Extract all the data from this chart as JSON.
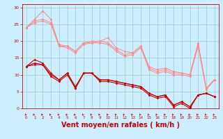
{
  "title": "",
  "xlabel": "Vent moyen/en rafales ( km/h )",
  "bg_color": "#cceeff",
  "grid_color": "#99cccc",
  "line_color_dark": "#cc0000",
  "line_color_light": "#ff8888",
  "xlim": [
    -0.5,
    23.5
  ],
  "ylim": [
    0,
    31
  ],
  "xtick_labels": [
    "0",
    "1",
    "2",
    "3",
    "4",
    "5",
    "6",
    "7",
    "8",
    "9",
    "10",
    "11",
    "12",
    "13",
    "14",
    "15",
    "16",
    "17",
    "18",
    "19",
    "20",
    "21",
    "22",
    "23"
  ],
  "yticks": [
    0,
    5,
    10,
    15,
    20,
    25,
    30
  ],
  "series_light": [
    [
      24.0,
      26.5,
      29.0,
      26.5,
      18.5,
      18.5,
      17.0,
      19.5,
      19.5,
      20.0,
      21.0,
      18.0,
      17.0,
      16.5,
      18.5,
      12.5,
      11.5,
      12.0,
      11.0,
      10.5,
      10.0,
      19.5,
      6.0,
      8.5
    ],
    [
      24.0,
      26.0,
      26.5,
      25.5,
      19.0,
      18.5,
      17.0,
      19.5,
      20.0,
      20.0,
      19.5,
      17.5,
      16.0,
      16.5,
      18.5,
      12.0,
      11.0,
      11.5,
      10.5,
      10.5,
      10.0,
      19.0,
      6.0,
      8.5
    ],
    [
      24.0,
      25.5,
      26.0,
      25.0,
      18.5,
      18.0,
      16.5,
      19.0,
      19.5,
      19.5,
      19.0,
      17.0,
      15.5,
      16.0,
      18.0,
      11.5,
      10.5,
      11.0,
      10.0,
      10.0,
      9.5,
      18.5,
      5.5,
      8.5
    ]
  ],
  "series_dark": [
    [
      12.5,
      14.5,
      13.5,
      10.5,
      8.5,
      10.5,
      6.5,
      10.5,
      10.5,
      8.5,
      8.5,
      8.0,
      7.5,
      7.0,
      6.5,
      4.5,
      3.5,
      4.0,
      1.0,
      2.0,
      0.5,
      4.0,
      4.5,
      3.5
    ],
    [
      12.5,
      13.5,
      13.0,
      10.0,
      8.5,
      10.5,
      6.0,
      10.5,
      10.5,
      8.5,
      8.5,
      8.0,
      7.5,
      7.0,
      6.5,
      4.5,
      3.5,
      4.0,
      1.0,
      2.0,
      0.5,
      4.0,
      4.5,
      3.5
    ],
    [
      12.5,
      13.0,
      13.0,
      9.5,
      8.0,
      10.0,
      6.0,
      10.5,
      10.5,
      8.0,
      8.0,
      7.5,
      7.0,
      6.5,
      6.0,
      4.0,
      3.0,
      3.5,
      0.5,
      1.5,
      0.0,
      4.0,
      4.5,
      3.5
    ]
  ],
  "xlabel_fontsize": 7,
  "xlabel_color": "#cc0000",
  "tick_fontsize": 4,
  "tick_color": "#cc0000",
  "linewidth_light": 0.7,
  "linewidth_dark": 0.8,
  "marker_size": 1.5,
  "arrow_color": "#cc0000"
}
